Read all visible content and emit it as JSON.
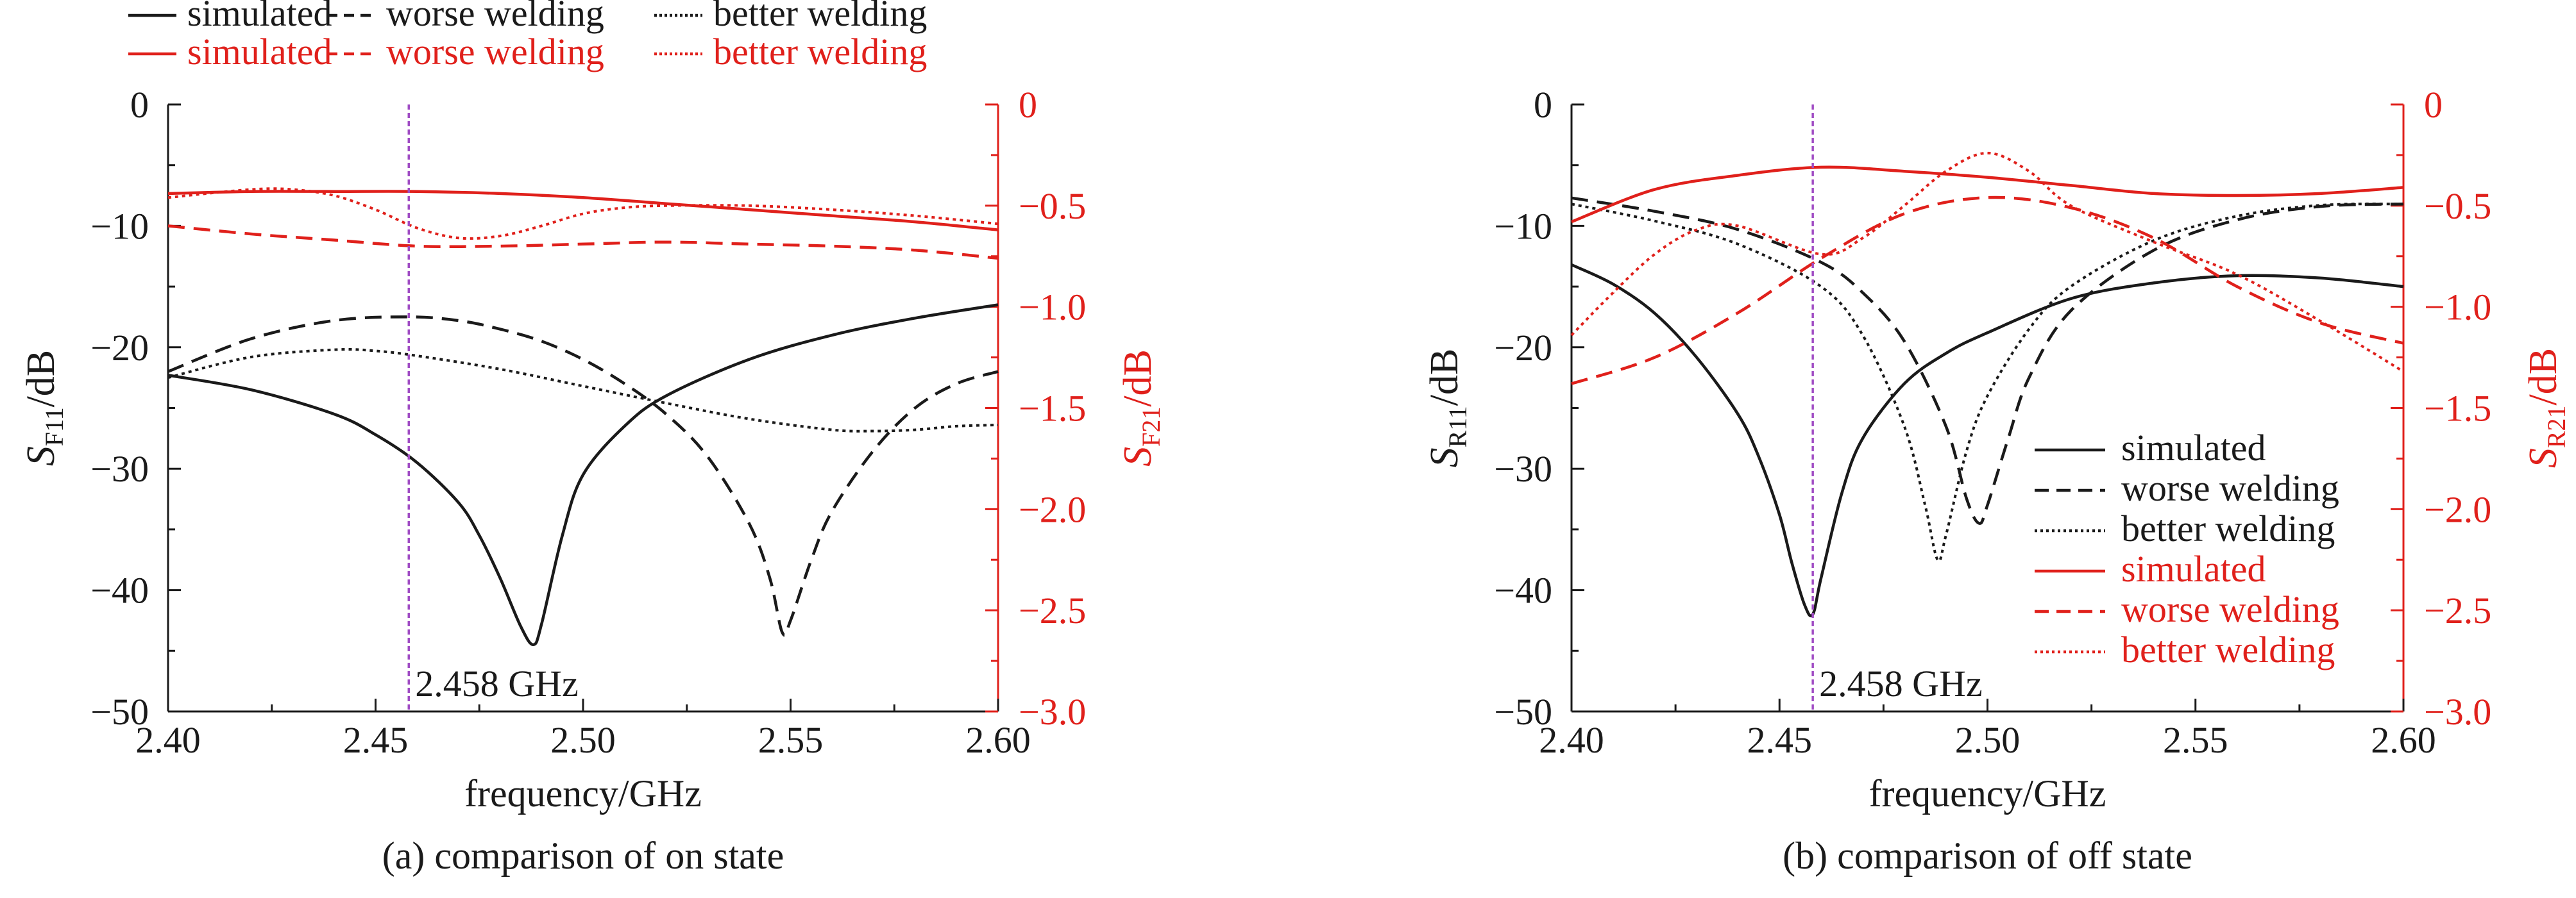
{
  "colors": {
    "black": "#1a1a1a",
    "red": "#e0201b",
    "marker": "#a04cc4"
  },
  "chart_data": [
    {
      "type": "line",
      "caption": "(a) comparison of on state",
      "xlabel": "frequency/GHz",
      "ylabel_left": {
        "main": "S",
        "sub": "F11",
        "unit": "/dB"
      },
      "ylabel_right": {
        "main": "S",
        "sub": "F21",
        "unit": "/dB"
      },
      "xlim": [
        2.4,
        2.6
      ],
      "ylim_left": [
        -50,
        0
      ],
      "ylim_right": [
        -3.0,
        0
      ],
      "x_ticks": [
        "2.40",
        "2.45",
        "2.50",
        "2.55",
        "2.60"
      ],
      "y_ticks_left": [
        "0",
        "−10",
        "−20",
        "−30",
        "−40",
        "−50"
      ],
      "y_ticks_right": [
        "0",
        "−0.5",
        "−1.0",
        "−1.5",
        "−2.0",
        "−2.5",
        "−3.0"
      ],
      "marker": {
        "x": 2.458,
        "label": "2.458 GHz"
      },
      "legend": {
        "placement": "top-left-outside",
        "entries": [
          {
            "label": "simulated",
            "color": "black",
            "dash": "solid"
          },
          {
            "label": "worse welding",
            "color": "black",
            "dash": "dashed"
          },
          {
            "label": "better welding",
            "color": "black",
            "dash": "dotted"
          },
          {
            "label": "simulated",
            "color": "red",
            "dash": "solid"
          },
          {
            "label": "worse welding",
            "color": "red",
            "dash": "dashed"
          },
          {
            "label": "better welding",
            "color": "red",
            "dash": "dotted"
          }
        ]
      },
      "series": [
        {
          "axis": "left",
          "color": "black",
          "dash": "solid",
          "x": [
            2.4,
            2.42,
            2.44,
            2.45,
            2.46,
            2.47,
            2.475,
            2.48,
            2.485,
            2.488,
            2.49,
            2.495,
            2.5,
            2.51,
            2.52,
            2.54,
            2.56,
            2.58,
            2.6
          ],
          "y": [
            -22.3,
            -23.5,
            -25.5,
            -27.2,
            -29.5,
            -32.8,
            -35.5,
            -39.0,
            -43.0,
            -44.5,
            -42.8,
            -35.5,
            -30.5,
            -26.5,
            -24.0,
            -21.0,
            -19.0,
            -17.6,
            -16.5
          ]
        },
        {
          "axis": "left",
          "color": "black",
          "dash": "dashed",
          "x": [
            2.4,
            2.42,
            2.44,
            2.458,
            2.47,
            2.48,
            2.49,
            2.5,
            2.51,
            2.52,
            2.53,
            2.54,
            2.545,
            2.548,
            2.55,
            2.555,
            2.56,
            2.57,
            2.58,
            2.59,
            2.6
          ],
          "y": [
            -22.0,
            -19.3,
            -17.8,
            -17.5,
            -17.8,
            -18.5,
            -19.5,
            -21.0,
            -23.0,
            -25.5,
            -29.0,
            -34.5,
            -39.0,
            -43.5,
            -42.5,
            -37.5,
            -33.5,
            -28.5,
            -25.0,
            -23.0,
            -22.0
          ]
        },
        {
          "axis": "left",
          "color": "black",
          "dash": "dotted",
          "x": [
            2.4,
            2.42,
            2.44,
            2.45,
            2.46,
            2.48,
            2.5,
            2.52,
            2.54,
            2.56,
            2.57,
            2.58,
            2.59,
            2.6
          ],
          "y": [
            -22.5,
            -20.8,
            -20.2,
            -20.3,
            -20.7,
            -21.8,
            -23.2,
            -24.6,
            -25.9,
            -26.8,
            -26.9,
            -26.8,
            -26.5,
            -26.4
          ]
        },
        {
          "axis": "right",
          "color": "red",
          "dash": "solid",
          "x": [
            2.4,
            2.42,
            2.44,
            2.46,
            2.48,
            2.5,
            2.52,
            2.54,
            2.56,
            2.58,
            2.6
          ],
          "y": [
            -0.44,
            -0.43,
            -0.43,
            -0.43,
            -0.44,
            -0.46,
            -0.49,
            -0.52,
            -0.55,
            -0.58,
            -0.62
          ]
        },
        {
          "axis": "right",
          "color": "red",
          "dash": "dashed",
          "x": [
            2.4,
            2.42,
            2.44,
            2.46,
            2.48,
            2.5,
            2.52,
            2.54,
            2.56,
            2.58,
            2.6
          ],
          "y": [
            -0.6,
            -0.64,
            -0.67,
            -0.7,
            -0.7,
            -0.69,
            -0.68,
            -0.69,
            -0.7,
            -0.72,
            -0.76
          ]
        },
        {
          "axis": "right",
          "color": "red",
          "dash": "dotted",
          "x": [
            2.4,
            2.42,
            2.43,
            2.44,
            2.45,
            2.46,
            2.47,
            2.48,
            2.49,
            2.5,
            2.51,
            2.52,
            2.54,
            2.56,
            2.58,
            2.6
          ],
          "y": [
            -0.46,
            -0.42,
            -0.42,
            -0.45,
            -0.52,
            -0.61,
            -0.66,
            -0.65,
            -0.6,
            -0.54,
            -0.51,
            -0.5,
            -0.5,
            -0.52,
            -0.55,
            -0.59
          ]
        }
      ]
    },
    {
      "type": "line",
      "caption": "(b) comparison of off state",
      "xlabel": "frequency/GHz",
      "ylabel_left": {
        "main": "S",
        "sub": "R11",
        "unit": "/dB"
      },
      "ylabel_right": {
        "main": "S",
        "sub": "R21",
        "unit": "/dB"
      },
      "xlim": [
        2.4,
        2.6
      ],
      "ylim_left": [
        -50,
        0
      ],
      "ylim_right": [
        -3.0,
        0
      ],
      "x_ticks": [
        "2.40",
        "2.45",
        "2.50",
        "2.55",
        "2.60"
      ],
      "y_ticks_left": [
        "0",
        "−10",
        "−20",
        "−30",
        "−40",
        "−50"
      ],
      "y_ticks_right": [
        "0",
        "−0.5",
        "−1.0",
        "−1.5",
        "−2.0",
        "−2.5",
        "−3.0"
      ],
      "marker": {
        "x": 2.458,
        "label": "2.458 GHz"
      },
      "legend": {
        "placement": "bottom-right",
        "entries": [
          {
            "label": "simulated",
            "color": "black",
            "dash": "solid"
          },
          {
            "label": "worse welding",
            "color": "black",
            "dash": "dashed"
          },
          {
            "label": "better welding",
            "color": "black",
            "dash": "dotted"
          },
          {
            "label": "simulated",
            "color": "red",
            "dash": "solid"
          },
          {
            "label": "worse welding",
            "color": "red",
            "dash": "dashed"
          },
          {
            "label": "better welding",
            "color": "red",
            "dash": "dotted"
          }
        ]
      },
      "series": [
        {
          "axis": "left",
          "color": "black",
          "dash": "solid",
          "x": [
            2.4,
            2.41,
            2.42,
            2.43,
            2.44,
            2.445,
            2.45,
            2.453,
            2.456,
            2.458,
            2.46,
            2.465,
            2.47,
            2.48,
            2.49,
            2.5,
            2.52,
            2.54,
            2.56,
            2.58,
            2.6
          ],
          "y": [
            -13.2,
            -14.8,
            -17.2,
            -20.8,
            -25.5,
            -29.0,
            -33.8,
            -37.8,
            -41.2,
            -42.0,
            -39.0,
            -32.0,
            -27.5,
            -23.0,
            -20.5,
            -18.8,
            -16.0,
            -14.7,
            -14.1,
            -14.3,
            -15.0
          ]
        },
        {
          "axis": "left",
          "color": "black",
          "dash": "dashed",
          "x": [
            2.4,
            2.42,
            2.44,
            2.46,
            2.47,
            2.48,
            2.49,
            2.495,
            2.498,
            2.5,
            2.505,
            2.51,
            2.52,
            2.54,
            2.56,
            2.58,
            2.6
          ],
          "y": [
            -7.7,
            -8.8,
            -10.3,
            -13.0,
            -15.5,
            -19.5,
            -26.5,
            -32.5,
            -34.5,
            -33.0,
            -27.5,
            -22.5,
            -17.0,
            -12.0,
            -9.5,
            -8.4,
            -8.2
          ]
        },
        {
          "axis": "left",
          "color": "black",
          "dash": "dotted",
          "x": [
            2.4,
            2.42,
            2.44,
            2.46,
            2.47,
            2.48,
            2.485,
            2.488,
            2.49,
            2.495,
            2.5,
            2.51,
            2.52,
            2.54,
            2.56,
            2.58,
            2.6
          ],
          "y": [
            -8.2,
            -9.6,
            -11.5,
            -15.0,
            -19.0,
            -26.5,
            -33.0,
            -37.5,
            -35.5,
            -28.5,
            -24.0,
            -18.5,
            -15.0,
            -11.2,
            -9.2,
            -8.3,
            -8.2
          ]
        },
        {
          "axis": "right",
          "color": "red",
          "dash": "solid",
          "x": [
            2.4,
            2.42,
            2.44,
            2.46,
            2.48,
            2.5,
            2.52,
            2.54,
            2.56,
            2.58,
            2.6
          ],
          "y": [
            -0.58,
            -0.42,
            -0.35,
            -0.31,
            -0.33,
            -0.36,
            -0.4,
            -0.44,
            -0.45,
            -0.44,
            -0.41
          ]
        },
        {
          "axis": "right",
          "color": "red",
          "dash": "dashed",
          "x": [
            2.4,
            2.42,
            2.44,
            2.46,
            2.48,
            2.5,
            2.52,
            2.54,
            2.56,
            2.58,
            2.6
          ],
          "y": [
            -1.38,
            -1.25,
            -1.03,
            -0.76,
            -0.54,
            -0.46,
            -0.51,
            -0.66,
            -0.9,
            -1.08,
            -1.18
          ]
        },
        {
          "axis": "right",
          "color": "red",
          "dash": "dotted",
          "x": [
            2.4,
            2.41,
            2.42,
            2.43,
            2.44,
            2.46,
            2.47,
            2.48,
            2.49,
            2.5,
            2.51,
            2.52,
            2.54,
            2.56,
            2.58,
            2.6
          ],
          "y": [
            -1.14,
            -0.93,
            -0.74,
            -0.62,
            -0.6,
            -0.74,
            -0.66,
            -0.5,
            -0.33,
            -0.24,
            -0.33,
            -0.5,
            -0.68,
            -0.84,
            -1.07,
            -1.32
          ]
        }
      ]
    }
  ]
}
